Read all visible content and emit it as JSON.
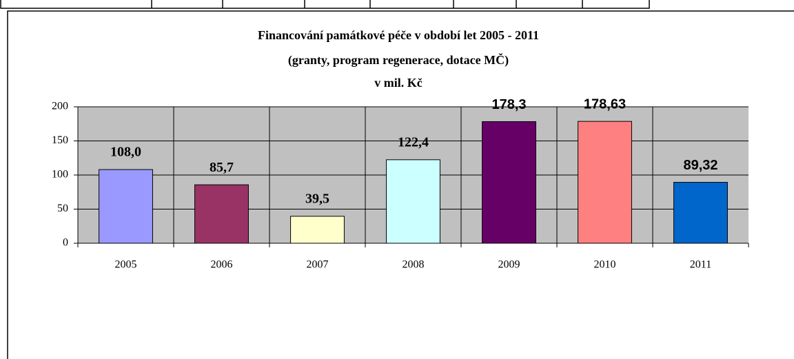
{
  "chart_data": {
    "type": "bar",
    "title": [
      "Financování památkové péče v období let 2005 - 2011",
      "(granty, program regenerace, dotace MČ)",
      "v mil. Kč"
    ],
    "categories": [
      "2005",
      "2006",
      "2007",
      "2008",
      "2009",
      "2010",
      "2011"
    ],
    "values": [
      108.0,
      85.7,
      39.5,
      122.4,
      178.3,
      178.63,
      89.32
    ],
    "value_labels": [
      "108,0",
      "85,7",
      "39,5",
      "122,4",
      "178,3",
      "178,63",
      "89,32"
    ],
    "colors": [
      "#9999ff",
      "#993366",
      "#ffffcc",
      "#ccffff",
      "#660066",
      "#ff8080",
      "#0066cc"
    ],
    "ylim": [
      0,
      200
    ],
    "yticks": [
      0,
      50,
      100,
      150,
      200
    ],
    "grid": true
  }
}
